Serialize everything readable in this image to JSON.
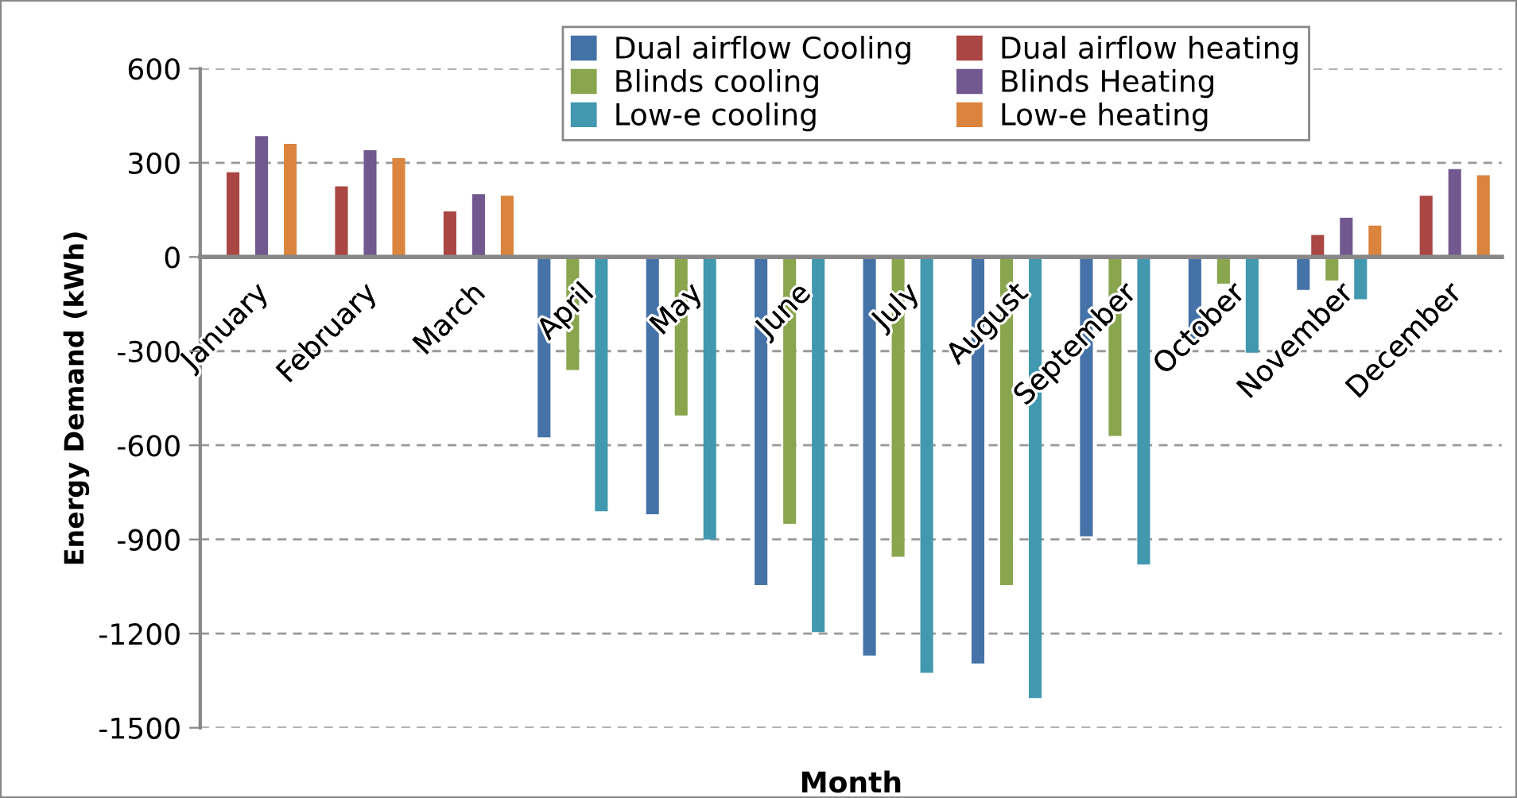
{
  "chart_data": {
    "type": "bar",
    "xlabel": "Month",
    "ylabel": "Energy Demand (kWh)",
    "categories": [
      "January",
      "February",
      "March",
      "April",
      "May",
      "June",
      "July",
      "August",
      "September",
      "October",
      "November",
      "December"
    ],
    "series": [
      {
        "name": "Dual airflow Cooling",
        "color": "#4572a7",
        "values": [
          null,
          null,
          null,
          -575,
          -820,
          -1045,
          -1270,
          -1295,
          -890,
          -260,
          -105,
          null
        ]
      },
      {
        "name": "Dual airflow heating",
        "color": "#aa4643",
        "values": [
          270,
          225,
          145,
          null,
          null,
          null,
          null,
          null,
          null,
          null,
          70,
          195
        ]
      },
      {
        "name": "Blinds cooling",
        "color": "#89a54e",
        "values": [
          null,
          null,
          null,
          -360,
          -505,
          -850,
          -955,
          -1045,
          -570,
          -85,
          -75,
          null
        ]
      },
      {
        "name": "Blinds Heating",
        "color": "#71588f",
        "values": [
          385,
          340,
          200,
          null,
          null,
          null,
          null,
          null,
          null,
          null,
          125,
          280
        ]
      },
      {
        "name": "Low-e cooling",
        "color": "#4198af",
        "values": [
          null,
          null,
          null,
          -810,
          -900,
          -1195,
          -1325,
          -1405,
          -980,
          -305,
          -135,
          null
        ]
      },
      {
        "name": "Low-e heating",
        "color": "#db843d",
        "values": [
          360,
          315,
          195,
          null,
          null,
          null,
          null,
          null,
          null,
          null,
          100,
          260
        ]
      }
    ],
    "ylim": [
      -1500,
      600
    ],
    "yticks": [
      -1500,
      -1200,
      -900,
      -600,
      -300,
      0,
      300,
      600
    ],
    "grid": "y",
    "legend": "top"
  }
}
